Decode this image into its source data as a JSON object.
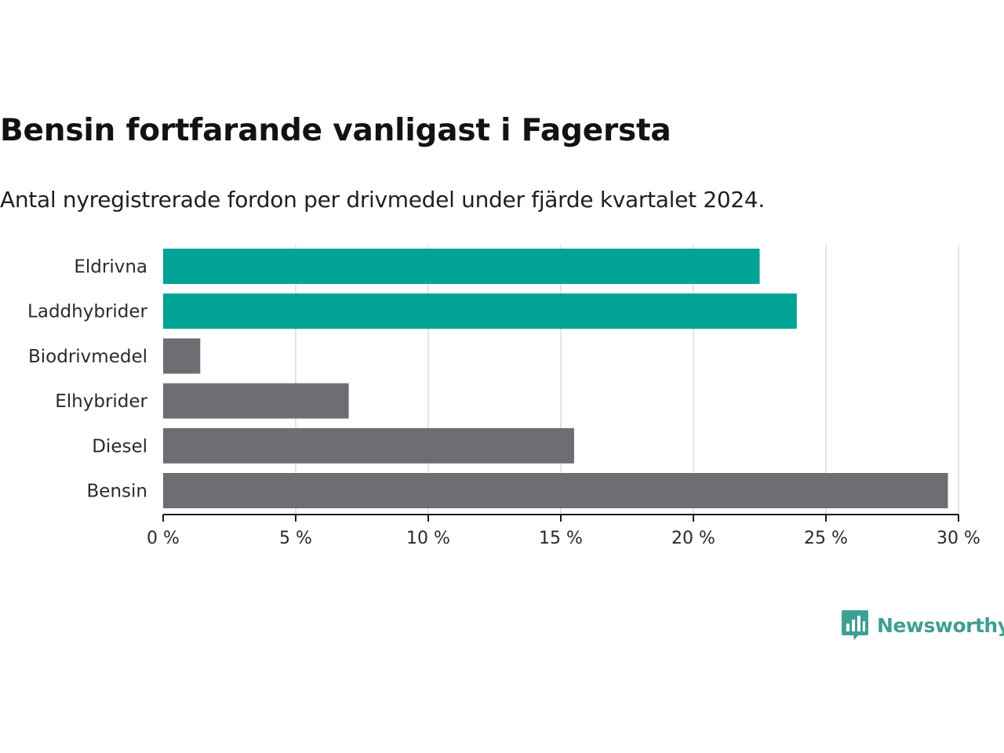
{
  "title": "Bensin fortfarande vanligast i Fagersta",
  "subtitle": "Antal nyregistrerade fordon per drivmedel under fjärde kvartalet 2024.",
  "brand": {
    "name": "Newsworthy",
    "icon": "bar-chart-speech-bubble-icon",
    "color": "#3f9f92"
  },
  "chart_data": {
    "type": "bar",
    "orientation": "horizontal",
    "categories": [
      "Eldrivna",
      "Laddhybrider",
      "Biodrivmedel",
      "Elhybrider",
      "Diesel",
      "Bensin"
    ],
    "values": [
      22.5,
      23.9,
      1.4,
      7.0,
      15.5,
      29.6
    ],
    "colors": [
      "#00a396",
      "#00a396",
      "#6f6d74",
      "#6f6d74",
      "#6f6d74",
      "#6f6d74"
    ],
    "xlim": [
      0,
      30
    ],
    "xticks": [
      0,
      5,
      10,
      15,
      20,
      25,
      30
    ],
    "xtick_labels": [
      "0 %",
      "5 %",
      "10 %",
      "15 %",
      "20 %",
      "25 %",
      "30 %"
    ],
    "grid": true,
    "xlabel": "",
    "ylabel": ""
  }
}
